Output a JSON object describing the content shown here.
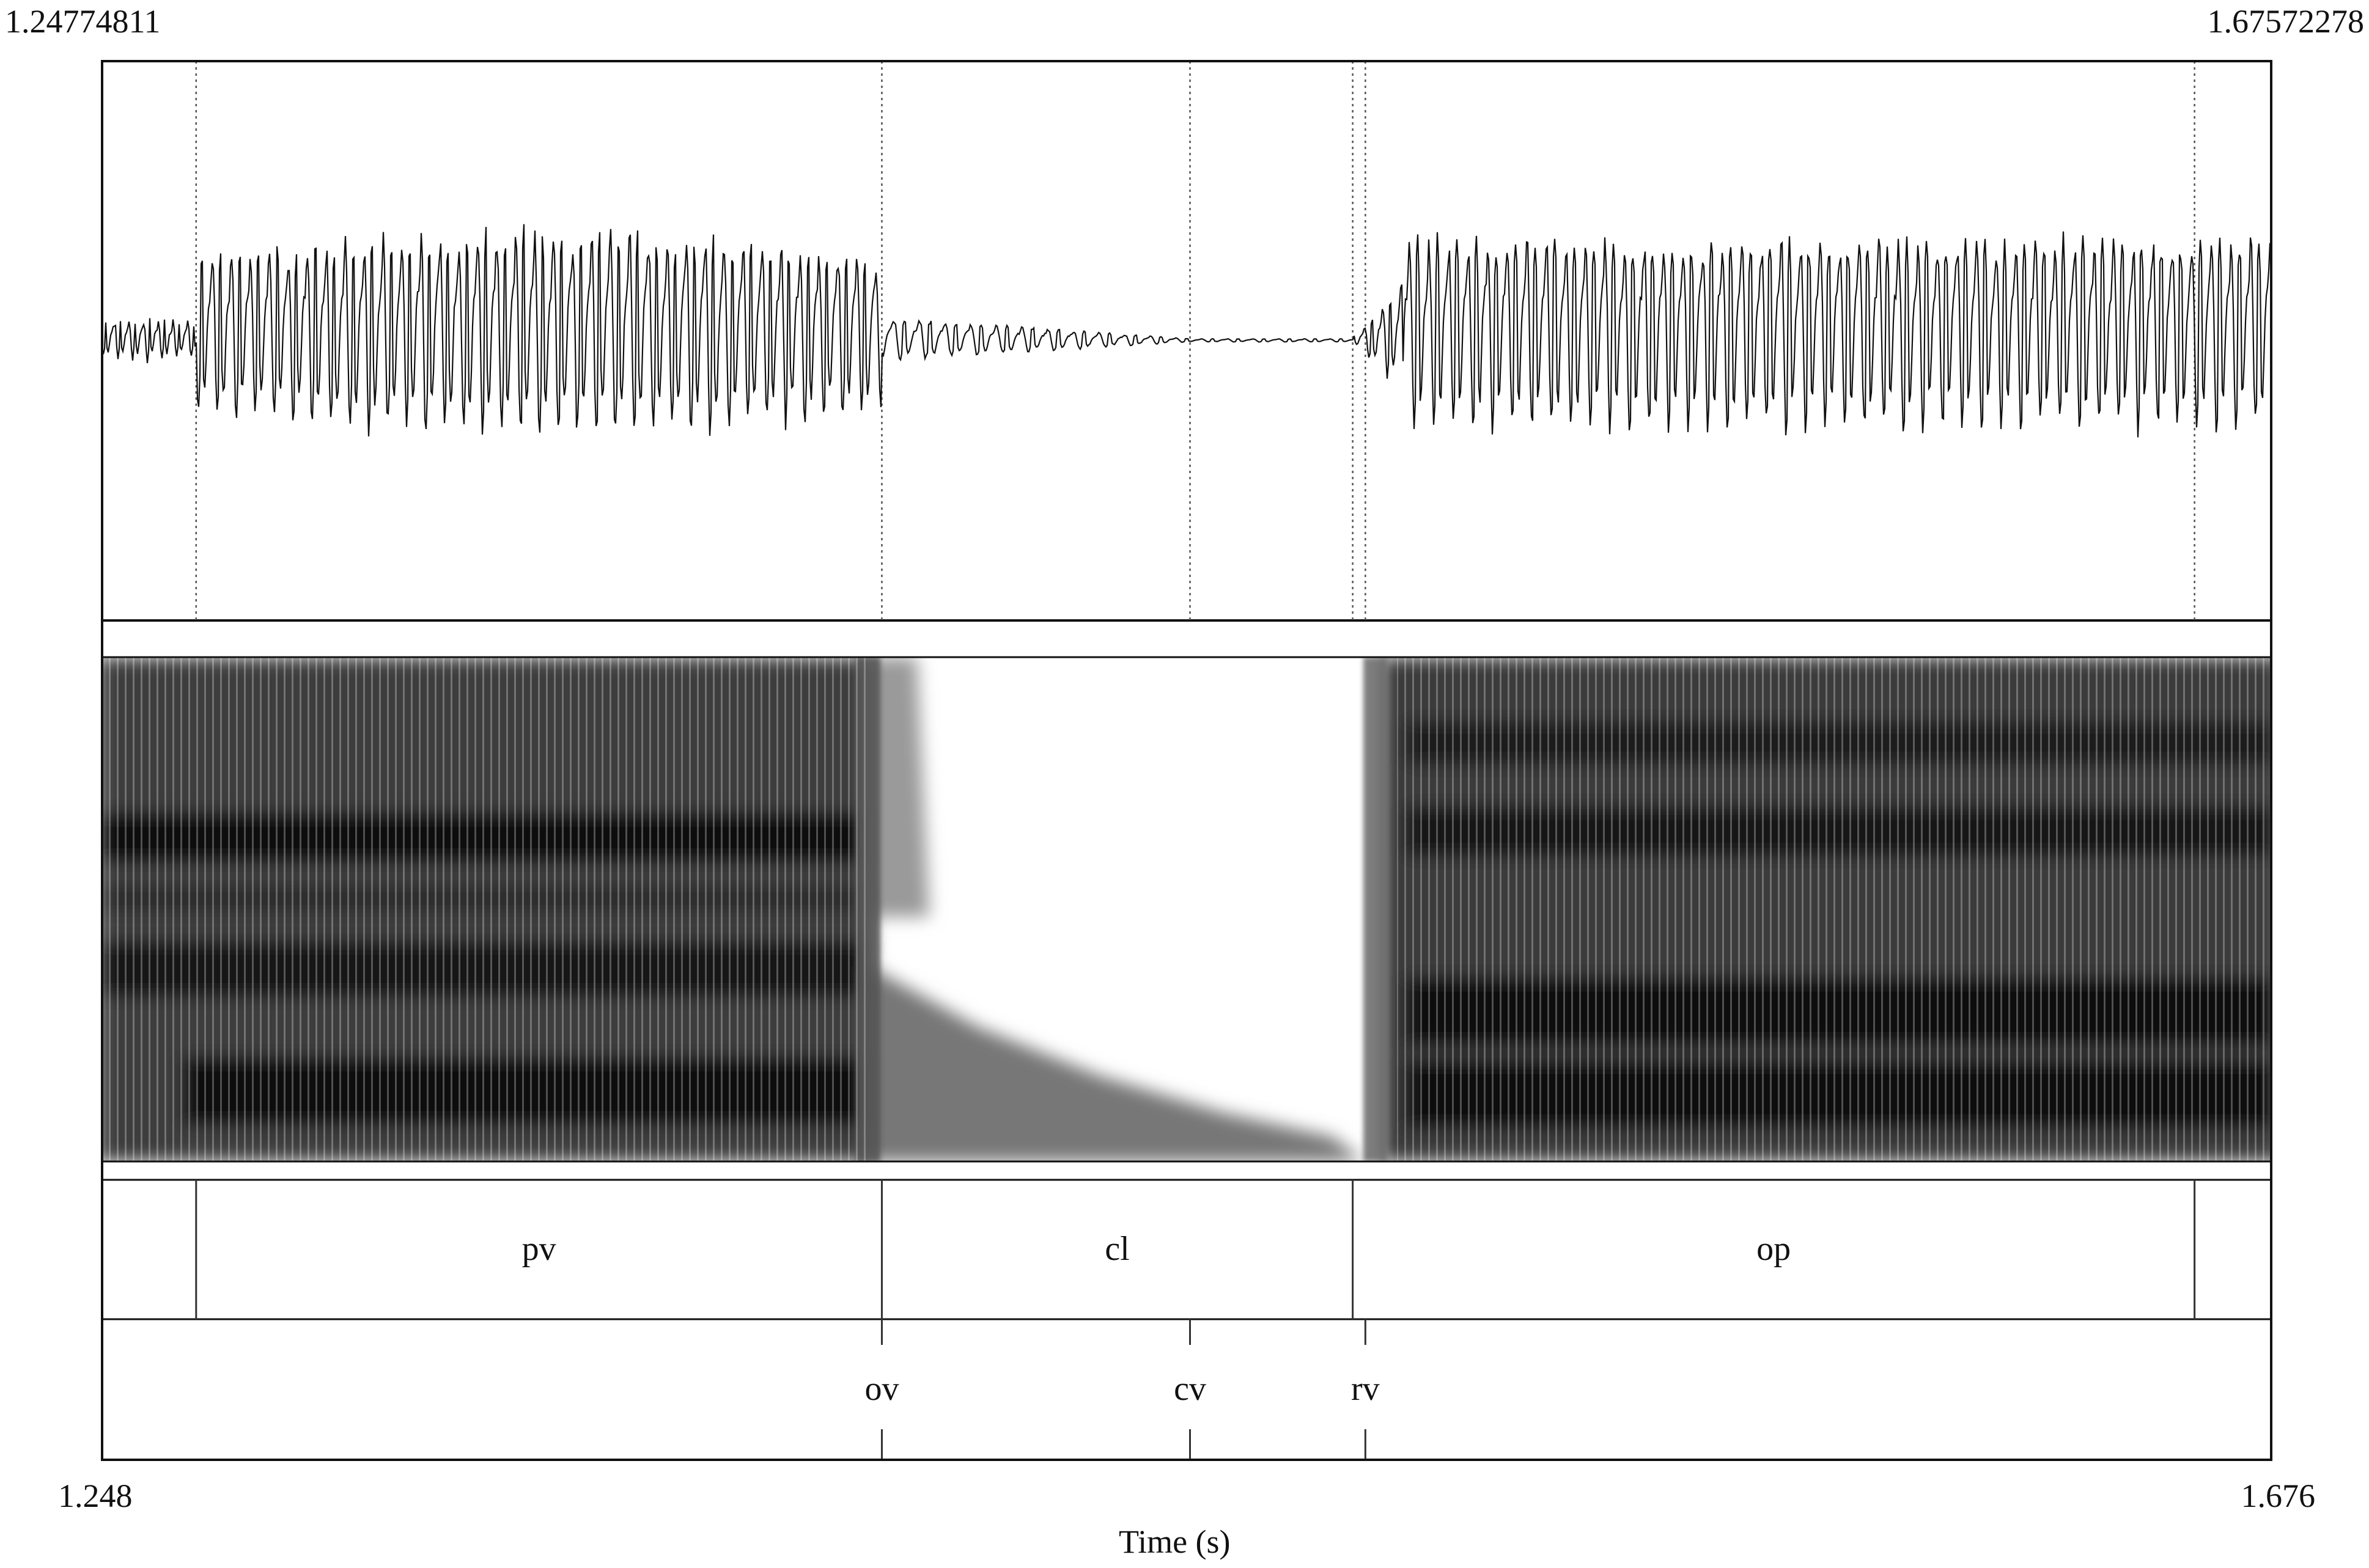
{
  "window": {
    "start_time": "1.24774811",
    "end_time": "1.67572278"
  },
  "axis": {
    "start_label": "1.248",
    "end_label": "1.676",
    "xlabel": "Time (s)",
    "range": [
      1.24774811,
      1.67572278
    ]
  },
  "colors": {
    "frame": "#111111",
    "boundary": "#666666",
    "waveform": "#111111",
    "spectrogram_dark": "#0b0b0b"
  },
  "boundaries": {
    "times": [
      1.2663,
      1.4016,
      1.4624,
      1.4945,
      1.497,
      1.6606
    ]
  },
  "tier1": {
    "intervals": [
      {
        "start": 1.24774811,
        "end": 1.2663,
        "label": ""
      },
      {
        "start": 1.2663,
        "end": 1.4016,
        "label": "pv"
      },
      {
        "start": 1.4016,
        "end": 1.4945,
        "label": "cl"
      },
      {
        "start": 1.4945,
        "end": 1.6606,
        "label": "op"
      },
      {
        "start": 1.6606,
        "end": 1.67572278,
        "label": ""
      }
    ]
  },
  "tier2": {
    "points": [
      {
        "time": 1.4016,
        "label": "ov"
      },
      {
        "time": 1.4624,
        "label": "cv"
      },
      {
        "time": 1.497,
        "label": "rv"
      }
    ]
  }
}
